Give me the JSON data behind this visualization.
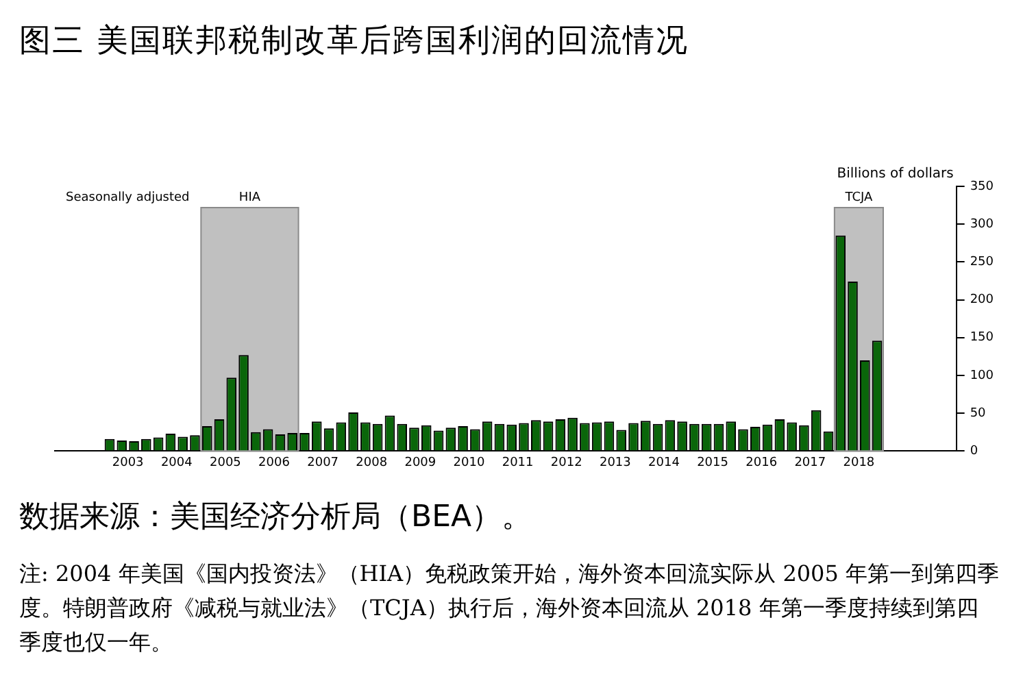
{
  "chart_data": {
    "type": "bar",
    "title": "图三  美国联邦税制改革后跨国利润的回流情况",
    "ylabel": "Billions of dollars",
    "annotations": [
      "Seasonally adjusted",
      "数据来源：美国经济分析局（BEA）。",
      "注: 2004 年美国《国内投资法》（HIA）免税政策开始，海外资本回流实际从 2005 年第一到第四季度。特朗普政府《减税与就业法》（TCJA）执行后，海外资本回流从 2018 年第一季度持续到第四季度也仅一年。"
    ],
    "x": [
      2003.125,
      2003.375,
      2003.625,
      2003.875,
      2004.125,
      2004.375,
      2004.625,
      2004.875,
      2005.125,
      2005.375,
      2005.625,
      2005.875,
      2006.125,
      2006.375,
      2006.625,
      2006.875,
      2007.125,
      2007.375,
      2007.625,
      2007.875,
      2008.125,
      2008.375,
      2008.625,
      2008.875,
      2009.125,
      2009.375,
      2009.625,
      2009.875,
      2010.125,
      2010.375,
      2010.625,
      2010.875,
      2011.125,
      2011.375,
      2011.625,
      2011.875,
      2012.125,
      2012.375,
      2012.625,
      2012.875,
      2013.125,
      2013.375,
      2013.625,
      2013.875,
      2014.125,
      2014.375,
      2014.625,
      2014.875,
      2015.125,
      2015.375,
      2015.625,
      2015.875,
      2016.125,
      2016.375,
      2016.625,
      2016.875,
      2017.125,
      2017.375,
      2017.625,
      2017.875,
      2018.125,
      2018.375,
      2018.625,
      2018.875
    ],
    "values": [
      16,
      14,
      13,
      16,
      18,
      23,
      19,
      21,
      33,
      42,
      97,
      127,
      25,
      29,
      22,
      24,
      24,
      39,
      30,
      38,
      51,
      38,
      36,
      47,
      36,
      31,
      34,
      27,
      31,
      33,
      29,
      39,
      36,
      35,
      37,
      41,
      39,
      42,
      44,
      37,
      38,
      39,
      28,
      37,
      40,
      36,
      41,
      39,
      36,
      36,
      36,
      39,
      29,
      32,
      35,
      42,
      38,
      34,
      54,
      26,
      285,
      224,
      120,
      146
    ],
    "color": "#0a660a",
    "xlim": [
      2002,
      2020.5
    ],
    "xticks": [
      {
        "value": 2003.5,
        "label": "2003"
      },
      {
        "value": 2004.5,
        "label": "2004"
      },
      {
        "value": 2005.5,
        "label": "2005"
      },
      {
        "value": 2006.5,
        "label": "2006"
      },
      {
        "value": 2007.5,
        "label": "2007"
      },
      {
        "value": 2008.5,
        "label": "2008"
      },
      {
        "value": 2009.5,
        "label": "2009"
      },
      {
        "value": 2010.5,
        "label": "2010"
      },
      {
        "value": 2011.5,
        "label": "2011"
      },
      {
        "value": 2012.5,
        "label": "2012"
      },
      {
        "value": 2013.5,
        "label": "2013"
      },
      {
        "value": 2014.5,
        "label": "2014"
      },
      {
        "value": 2015.5,
        "label": "2015"
      },
      {
        "value": 2016.5,
        "label": "2016"
      },
      {
        "value": 2017.5,
        "label": "2017"
      },
      {
        "value": 2018.5,
        "label": "2018"
      }
    ],
    "ylim": [
      0,
      350
    ],
    "yticks": [
      0,
      50,
      100,
      150,
      200,
      250,
      300,
      350
    ],
    "bands": [
      {
        "axis": "x",
        "from": 2005,
        "to": 2007,
        "label": "HIA",
        "color": "#c0c0c0"
      },
      {
        "axis": "x",
        "from": 2018,
        "to": 2019,
        "label": "TCJA",
        "color": "#c0c0c0"
      }
    ],
    "grid": false,
    "legend": false
  }
}
